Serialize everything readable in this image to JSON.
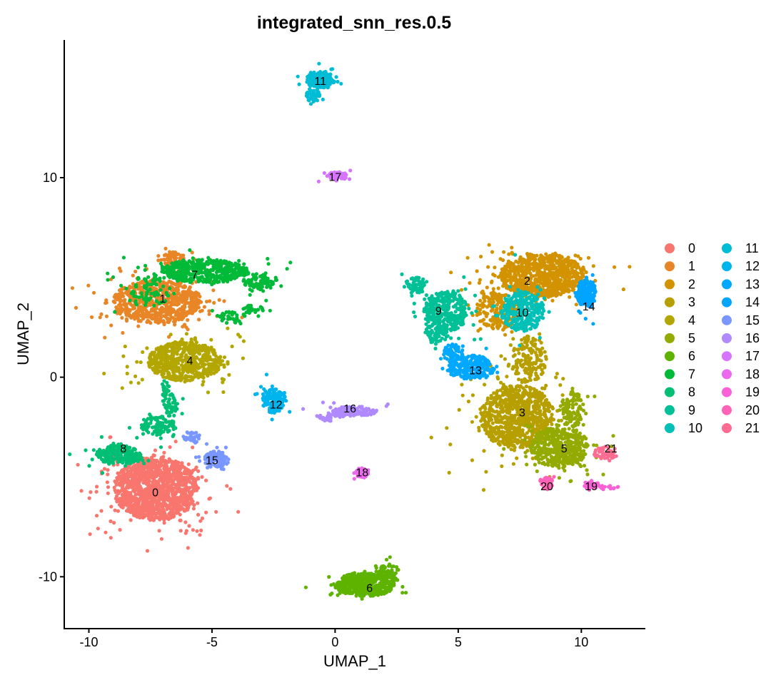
{
  "chart_data": {
    "type": "scatter",
    "title": "integrated_snn_res.0.5",
    "xlabel": "UMAP_1",
    "ylabel": "UMAP_2",
    "xlim": [
      -11.0,
      12.6
    ],
    "ylim": [
      -12.6,
      16.9
    ],
    "xticks": [
      -10,
      -5,
      0,
      5,
      10
    ],
    "yticks": [
      -10,
      0,
      10
    ],
    "grid": false,
    "legend_placement": "right",
    "clusters": [
      {
        "name": "0",
        "color": "#F8766D",
        "label_pos": [
          -7.3,
          -5.8
        ],
        "blobs": [
          [
            -7.3,
            -5.6,
            1.7,
            1.6,
            1300
          ]
        ]
      },
      {
        "name": "1",
        "color": "#E88526",
        "label_pos": [
          -7.0,
          3.9
        ],
        "blobs": [
          [
            -7.2,
            3.8,
            1.8,
            1.1,
            700
          ],
          [
            -6.6,
            5.9,
            0.5,
            0.4,
            60
          ]
        ]
      },
      {
        "name": "2",
        "color": "#D39200",
        "label_pos": [
          7.8,
          4.8
        ],
        "blobs": [
          [
            8.4,
            5.1,
            1.7,
            1.1,
            750
          ],
          [
            6.6,
            3.3,
            0.9,
            0.9,
            200
          ]
        ]
      },
      {
        "name": "3",
        "color": "#B79F00",
        "label_pos": [
          7.6,
          -1.8
        ],
        "blobs": [
          [
            7.4,
            -2.0,
            1.5,
            1.6,
            850
          ],
          [
            7.9,
            0.9,
            0.7,
            1.2,
            150
          ]
        ]
      },
      {
        "name": "4",
        "color": "#B3A600",
        "label_pos": [
          -5.9,
          0.8
        ],
        "blobs": [
          [
            -6.1,
            0.8,
            1.5,
            1.0,
            600
          ]
        ]
      },
      {
        "name": "5",
        "color": "#93AA00",
        "label_pos": [
          9.3,
          -3.6
        ],
        "blobs": [
          [
            9.1,
            -3.5,
            1.2,
            1.0,
            450
          ],
          [
            9.6,
            -1.6,
            0.5,
            0.9,
            100
          ]
        ]
      },
      {
        "name": "6",
        "color": "#5EB300",
        "label_pos": [
          1.4,
          -10.6
        ],
        "blobs": [
          [
            1.2,
            -10.4,
            1.2,
            0.6,
            450
          ],
          [
            2.2,
            -9.8,
            0.4,
            0.5,
            60
          ]
        ]
      },
      {
        "name": "7",
        "color": "#00BA38",
        "label_pos": [
          -5.7,
          5.1
        ],
        "blobs": [
          [
            -5.3,
            5.3,
            1.8,
            0.6,
            500
          ],
          [
            -3.1,
            4.7,
            0.6,
            0.4,
            80
          ],
          [
            -3.4,
            3.4,
            0.5,
            0.2,
            30
          ],
          [
            -4.2,
            3.0,
            0.6,
            0.3,
            40
          ],
          [
            -7.6,
            4.3,
            0.9,
            0.8,
            80
          ]
        ]
      },
      {
        "name": "8",
        "color": "#00BF74",
        "label_pos": [
          -8.6,
          -3.6
        ],
        "blobs": [
          [
            -8.8,
            -3.9,
            0.9,
            0.5,
            220
          ],
          [
            -7.2,
            -2.4,
            0.7,
            0.5,
            100
          ],
          [
            -6.7,
            -1.4,
            0.25,
            0.6,
            50
          ],
          [
            -6.9,
            -0.6,
            0.15,
            0.5,
            20
          ]
        ]
      },
      {
        "name": "9",
        "color": "#00C097",
        "label_pos": [
          4.2,
          3.3
        ],
        "blobs": [
          [
            4.5,
            3.3,
            0.9,
            1.0,
            350
          ],
          [
            3.3,
            4.6,
            0.5,
            0.4,
            60
          ],
          [
            4.1,
            2.2,
            0.5,
            0.5,
            60
          ]
        ]
      },
      {
        "name": "10",
        "color": "#00C0B8",
        "label_pos": [
          7.6,
          3.2
        ],
        "blobs": [
          [
            7.6,
            3.3,
            0.9,
            1.0,
            300
          ]
        ]
      },
      {
        "name": "11",
        "color": "#00BCD5",
        "label_pos": [
          -0.6,
          14.8
        ],
        "blobs": [
          [
            -0.6,
            14.9,
            0.6,
            0.4,
            200
          ],
          [
            -0.9,
            14.1,
            0.3,
            0.3,
            40
          ]
        ]
      },
      {
        "name": "12",
        "color": "#00B5EE",
        "label_pos": [
          -2.4,
          -1.4
        ],
        "blobs": [
          [
            -2.5,
            -1.2,
            0.45,
            0.6,
            150
          ]
        ]
      },
      {
        "name": "13",
        "color": "#00A9FF",
        "label_pos": [
          5.7,
          0.3
        ],
        "blobs": [
          [
            5.5,
            0.5,
            1.0,
            0.6,
            220
          ],
          [
            4.8,
            1.2,
            0.4,
            0.5,
            60
          ]
        ]
      },
      {
        "name": "14",
        "color": "#00A5FF",
        "label_pos": [
          10.3,
          3.5
        ],
        "blobs": [
          [
            10.2,
            4.2,
            0.4,
            0.7,
            150
          ]
        ]
      },
      {
        "name": "15",
        "color": "#7997FF",
        "label_pos": [
          -5.0,
          -4.2
        ],
        "blobs": [
          [
            -4.8,
            -4.1,
            0.5,
            0.4,
            120
          ],
          [
            -5.8,
            -3.0,
            0.4,
            0.3,
            30
          ]
        ]
      },
      {
        "name": "16",
        "color": "#B089FF",
        "label_pos": [
          0.6,
          -1.6
        ],
        "blobs": [
          [
            0.8,
            -1.7,
            0.9,
            0.25,
            120
          ],
          [
            -0.3,
            -2.0,
            0.5,
            0.2,
            30
          ]
        ]
      },
      {
        "name": "17",
        "color": "#D774FD",
        "label_pos": [
          0.0,
          10.0
        ],
        "blobs": [
          [
            0.1,
            10.1,
            0.4,
            0.2,
            80
          ]
        ]
      },
      {
        "name": "18",
        "color": "#EC69EF",
        "label_pos": [
          1.1,
          -4.8
        ],
        "blobs": [
          [
            1.1,
            -4.8,
            0.25,
            0.25,
            50
          ]
        ]
      },
      {
        "name": "19",
        "color": "#FB61D7",
        "label_pos": [
          10.4,
          -5.5
        ],
        "blobs": [
          [
            10.4,
            -5.4,
            0.3,
            0.2,
            40
          ],
          [
            11.1,
            -5.5,
            0.4,
            0.1,
            15
          ]
        ]
      },
      {
        "name": "20",
        "color": "#FF63B6",
        "label_pos": [
          8.6,
          -5.5
        ],
        "blobs": [
          [
            8.6,
            -5.3,
            0.25,
            0.3,
            50
          ]
        ]
      },
      {
        "name": "21",
        "color": "#FF6C91",
        "label_pos": [
          11.2,
          -3.6
        ],
        "blobs": [
          [
            11.0,
            -3.8,
            0.5,
            0.3,
            60
          ]
        ]
      }
    ]
  }
}
